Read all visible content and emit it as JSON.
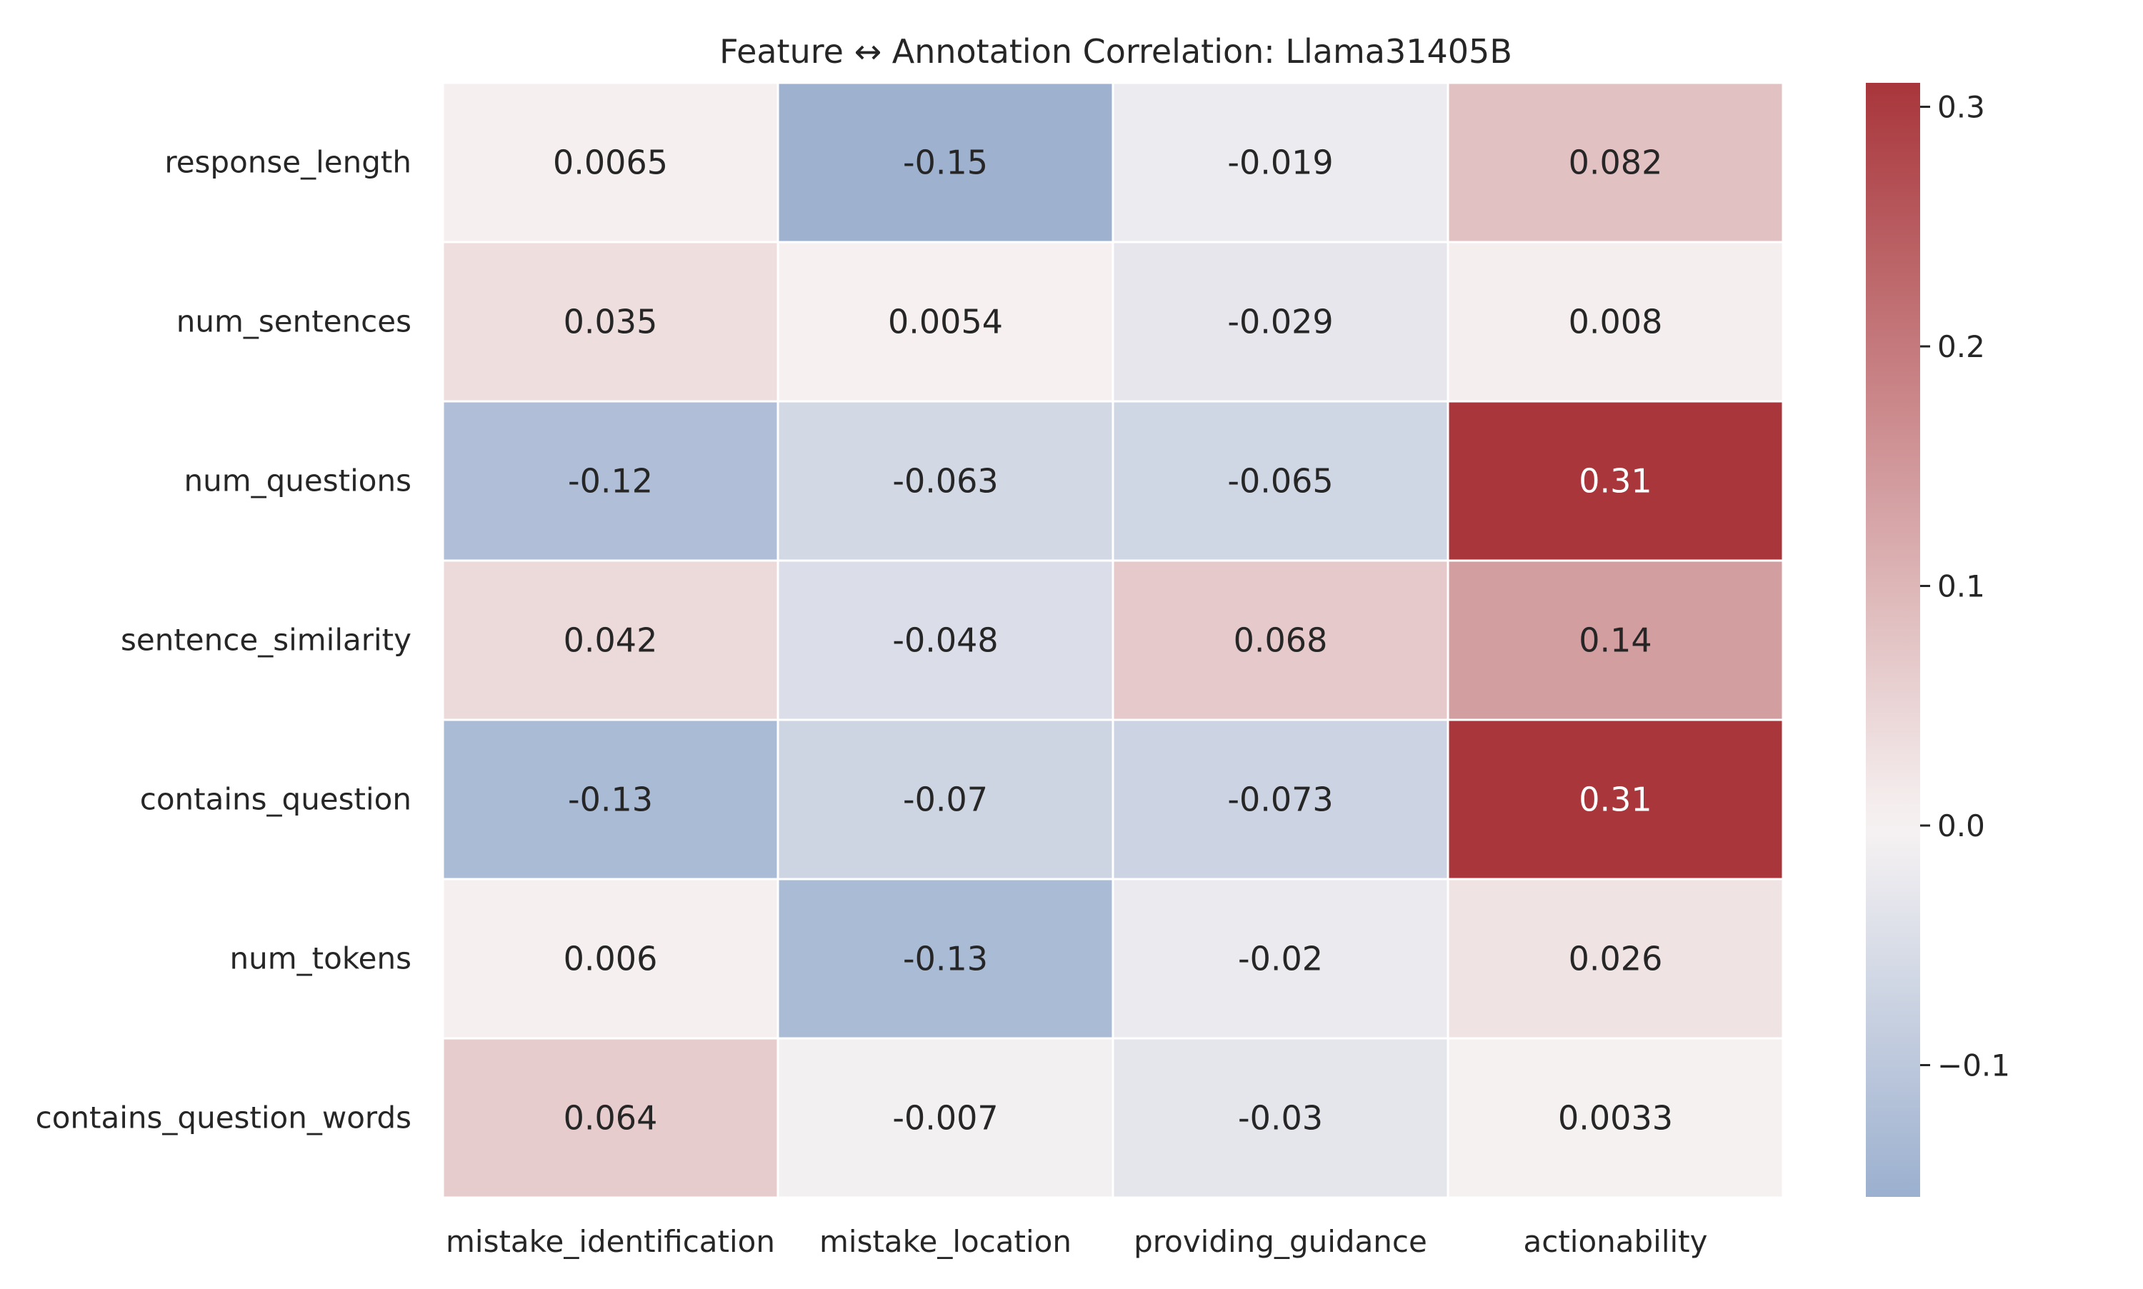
{
  "chart_data": {
    "type": "heatmap",
    "title": "Feature ↔ Annotation Correlation: Llama31405B",
    "xlabel": "",
    "ylabel": "",
    "rows": [
      "response_length",
      "num_sentences",
      "num_questions",
      "sentence_similarity",
      "contains_question",
      "num_tokens",
      "contains_question_words"
    ],
    "columns": [
      "mistake_identification",
      "mistake_location",
      "providing_guidance",
      "actionability"
    ],
    "values": [
      [
        0.0065,
        -0.15,
        -0.019,
        0.082
      ],
      [
        0.035,
        0.0054,
        -0.029,
        0.008
      ],
      [
        -0.12,
        -0.063,
        -0.065,
        0.31
      ],
      [
        0.042,
        -0.048,
        0.068,
        0.14
      ],
      [
        -0.13,
        -0.07,
        -0.073,
        0.31
      ],
      [
        0.006,
        -0.13,
        -0.02,
        0.026
      ],
      [
        0.064,
        -0.007,
        -0.03,
        0.0033
      ]
    ],
    "labels": [
      [
        "0.0065",
        "-0.15",
        "-0.019",
        "0.082"
      ],
      [
        "0.035",
        "0.0054",
        "-0.029",
        "0.008"
      ],
      [
        "-0.12",
        "-0.063",
        "-0.065",
        "0.31"
      ],
      [
        "0.042",
        "-0.048",
        "0.068",
        "0.14"
      ],
      [
        "-0.13",
        "-0.07",
        "-0.073",
        "0.31"
      ],
      [
        "0.006",
        "-0.13",
        "-0.02",
        "0.026"
      ],
      [
        "0.064",
        "-0.007",
        "-0.03",
        "0.0033"
      ]
    ],
    "colorbar": {
      "vmin": -0.155,
      "vmax": 0.31,
      "ticks": [
        -0.1,
        0.0,
        0.1,
        0.2,
        0.3
      ],
      "tick_labels": [
        "−0.1",
        "0.0",
        "0.1",
        "0.2",
        "0.3"
      ],
      "colormap": "vlag (blue-white-red, centered at 0)",
      "colors": {
        "negative": "#9bb0cf",
        "zero": "#f7f3f3",
        "positive": "#a8363b"
      }
    },
    "grid": false,
    "legend": "colorbar-right"
  }
}
